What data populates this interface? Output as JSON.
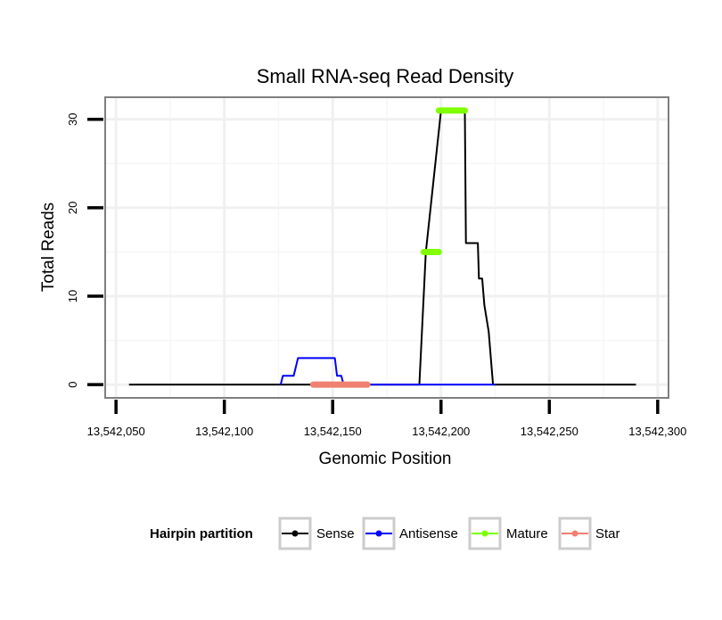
{
  "chart_data": {
    "type": "line",
    "title": "Small RNA-seq Read Density",
    "xlabel": "Genomic Position",
    "ylabel": "Total Reads",
    "xlim": [
      13542045,
      13542305
    ],
    "ylim": [
      -1.5,
      32.5
    ],
    "x_ticks": [
      13542050,
      13542100,
      13542150,
      13542200,
      13542250,
      13542300
    ],
    "x_tick_labels": [
      "13,542,050",
      "13,542,100",
      "13,542,150",
      "13,542,200",
      "13,542,250",
      "13,542,300"
    ],
    "y_ticks": [
      0,
      10,
      20,
      30
    ],
    "y_tick_labels": [
      "0",
      "10",
      "20",
      "30"
    ],
    "grid": true,
    "legend": {
      "title": "Hairpin partition",
      "position": "bottom",
      "entries": [
        "Sense",
        "Antisense",
        "Mature",
        "Star"
      ]
    },
    "series": [
      {
        "name": "Sense",
        "color": "#000000",
        "width": "thin",
        "x": [
          13542056,
          13542190,
          13542193,
          13542200,
          13542211,
          13542211.5,
          13542217,
          13542217.5,
          13542219,
          13542220,
          13542222,
          13542224,
          13542224.5,
          13542290
        ],
        "y": [
          0,
          0,
          15,
          31,
          31,
          16,
          16,
          12,
          12,
          9,
          6,
          0,
          0,
          0
        ]
      },
      {
        "name": "Antisense",
        "color": "#0000ff",
        "width": "thin",
        "x": [
          13542126,
          13542127,
          13542132,
          13542134,
          13542151,
          13542152,
          13542154,
          13542155,
          13542190
        ],
        "y": [
          0,
          1,
          1,
          3,
          3,
          1,
          1,
          0,
          0
        ]
      },
      {
        "name": "Antisense-flat",
        "color": "#0000ff",
        "width": "thin",
        "x": [
          13542190,
          13542225
        ],
        "y": [
          0,
          0
        ]
      },
      {
        "name": "Mature",
        "color": "#7fff00",
        "width": "thick",
        "segments": [
          {
            "x": [
              13542192,
              13542199
            ],
            "y": [
              15,
              15
            ]
          },
          {
            "x": [
              13542199,
              13542211
            ],
            "y": [
              31,
              31
            ]
          }
        ]
      },
      {
        "name": "Star",
        "color": "#f08070",
        "width": "thick",
        "segments": [
          {
            "x": [
              13542141,
              13542166
            ],
            "y": [
              0,
              0
            ]
          }
        ]
      }
    ]
  }
}
